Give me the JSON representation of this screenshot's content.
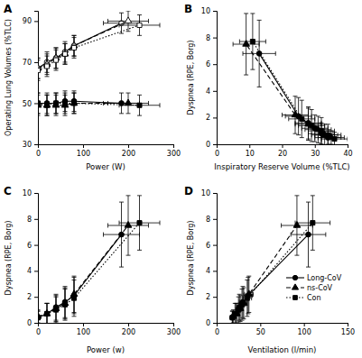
{
  "chart_data": [
    {
      "type": "line",
      "title": "A",
      "x_label": "Power (W)",
      "y_label": "Operating Lung Volumes (%TLC)",
      "xlim": [
        0,
        300
      ],
      "xticks": [
        0,
        100,
        200,
        300
      ],
      "ylim": [
        30,
        95
      ],
      "yticks": [
        30,
        50,
        70,
        90
      ],
      "series": [
        {
          "color": "#000000",
          "line_style": "solid",
          "marker": "circle-open",
          "x": [
            0,
            20,
            40,
            60,
            80,
            185
          ],
          "values": [
            67,
            70,
            72,
            75,
            78,
            89
          ],
          "errors": [
            5,
            5,
            5,
            5,
            5,
            5
          ],
          "x_errors": [
            null,
            null,
            null,
            null,
            null,
            40
          ]
        },
        {
          "color": "#000000",
          "line_style": "dashed",
          "marker": "triangle-open",
          "x": [
            0,
            20,
            40,
            60,
            80,
            200
          ],
          "values": [
            67,
            69,
            72,
            74,
            78,
            90
          ],
          "errors": [
            5,
            5,
            5,
            5,
            5,
            5
          ],
          "x_errors": [
            null,
            null,
            null,
            null,
            null,
            45
          ]
        },
        {
          "color": "#000000",
          "line_style": "dotted",
          "marker": "square-open",
          "x": [
            0,
            20,
            40,
            60,
            80,
            225
          ],
          "values": [
            66,
            68,
            71,
            74,
            77,
            88
          ],
          "errors": [
            5,
            5,
            5,
            5,
            5,
            5
          ],
          "x_errors": [
            null,
            null,
            null,
            null,
            null,
            45
          ]
        },
        {
          "color": "#000000",
          "line_style": "solid",
          "marker": "circle",
          "x": [
            0,
            20,
            40,
            60,
            80,
            185
          ],
          "values": [
            50,
            50,
            50,
            51,
            51,
            50
          ],
          "errors": [
            5,
            5,
            5,
            5,
            5,
            5
          ],
          "x_errors": [
            null,
            null,
            null,
            null,
            null,
            40
          ]
        },
        {
          "color": "#000000",
          "line_style": "dashed",
          "marker": "triangle",
          "x": [
            0,
            20,
            40,
            60,
            80,
            200
          ],
          "values": [
            49,
            49,
            49,
            49,
            50,
            50
          ],
          "errors": [
            5,
            5,
            5,
            5,
            5,
            5
          ],
          "x_errors": [
            null,
            null,
            null,
            null,
            null,
            45
          ]
        },
        {
          "color": "#000000",
          "line_style": "dotted",
          "marker": "square",
          "x": [
            0,
            20,
            40,
            60,
            80,
            225
          ],
          "values": [
            50,
            49,
            50,
            50,
            50,
            49
          ],
          "errors": [
            5,
            5,
            5,
            5,
            5,
            5
          ],
          "x_errors": [
            null,
            null,
            null,
            null,
            null,
            45
          ]
        }
      ]
    },
    {
      "type": "line",
      "title": "B",
      "x_label": "Inspiratory Reserve Volume (%TLC)",
      "y_label": "Dyspnea (RPE, Borg)",
      "xlim": [
        0,
        40
      ],
      "xticks": [
        0,
        10,
        20,
        30,
        40
      ],
      "ylim": [
        0,
        10
      ],
      "yticks": [
        0,
        2,
        4,
        6,
        8,
        10
      ],
      "series": [
        {
          "color": "#000000",
          "line_style": "solid",
          "marker": "circle",
          "x": [
            34,
            32,
            30,
            28,
            25,
            13
          ],
          "values": [
            0.5,
            0.8,
            1.2,
            1.6,
            2.1,
            6.8
          ],
          "errors": [
            0.5,
            0.8,
            1.0,
            1.2,
            1.4,
            2.5
          ],
          "x_errors": [
            4,
            4,
            4,
            4,
            4,
            5
          ]
        },
        {
          "color": "#000000",
          "line_style": "dashed",
          "marker": "triangle",
          "x": [
            35,
            33,
            31,
            28,
            24,
            9
          ],
          "values": [
            0.5,
            0.7,
            1.1,
            1.5,
            2.2,
            7.5
          ],
          "errors": [
            0.5,
            0.8,
            1.0,
            1.2,
            1.4,
            2.3
          ],
          "x_errors": [
            4,
            4,
            4,
            4,
            4,
            4
          ]
        },
        {
          "color": "#000000",
          "line_style": "dotted",
          "marker": "square",
          "x": [
            36,
            34,
            32,
            29,
            26,
            11
          ],
          "values": [
            0.4,
            0.7,
            1.0,
            1.4,
            1.9,
            7.7
          ],
          "errors": [
            0.5,
            0.8,
            1.0,
            1.2,
            1.4,
            2.1
          ],
          "x_errors": [
            4,
            4,
            4,
            4,
            4,
            4
          ]
        }
      ]
    },
    {
      "type": "line",
      "title": "C",
      "x_label": "Power (w)",
      "y_label": "Dyspnea (RPE, Borg)",
      "xlim": [
        0,
        300
      ],
      "xticks": [
        0,
        100,
        200,
        300
      ],
      "ylim": [
        0,
        10
      ],
      "yticks": [
        0,
        2,
        4,
        6,
        8,
        10
      ],
      "series": [
        {
          "color": "#000000",
          "line_style": "solid",
          "marker": "circle",
          "x": [
            0,
            20,
            40,
            60,
            80,
            185
          ],
          "values": [
            0.4,
            0.7,
            1.2,
            1.6,
            2.1,
            6.8
          ],
          "errors": [
            0.5,
            0.8,
            1.0,
            1.2,
            1.4,
            2.5
          ],
          "x_errors": [
            null,
            null,
            null,
            null,
            null,
            40
          ]
        },
        {
          "color": "#000000",
          "line_style": "dashed",
          "marker": "triangle",
          "x": [
            0,
            20,
            40,
            60,
            80,
            200
          ],
          "values": [
            0.5,
            0.7,
            1.1,
            1.5,
            2.2,
            7.5
          ],
          "errors": [
            0.5,
            0.8,
            1.0,
            1.2,
            1.4,
            2.3
          ],
          "x_errors": [
            null,
            null,
            null,
            null,
            null,
            45
          ]
        },
        {
          "color": "#000000",
          "line_style": "dotted",
          "marker": "square",
          "x": [
            0,
            20,
            40,
            60,
            80,
            225
          ],
          "values": [
            0.4,
            0.7,
            1.0,
            1.4,
            1.9,
            7.7
          ],
          "errors": [
            0.5,
            0.8,
            1.0,
            1.2,
            1.4,
            2.1
          ],
          "x_errors": [
            null,
            null,
            null,
            null,
            null,
            45
          ]
        }
      ]
    },
    {
      "type": "line",
      "title": "D",
      "x_label": "Ventilation (l/min)",
      "y_label": "Dyspnea (RPE, Borg)",
      "xlim": [
        0,
        150
      ],
      "xticks": [
        0,
        50,
        100,
        150
      ],
      "ylim": [
        0,
        10
      ],
      "yticks": [
        0,
        2,
        4,
        6,
        8,
        10
      ],
      "legend": "lower right",
      "series": [
        {
          "name": "Long-CoV",
          "color": "#000000",
          "line_style": "solid",
          "marker": "circle",
          "x": [
            18,
            22,
            26,
            30,
            36,
            105
          ],
          "values": [
            0.4,
            0.7,
            1.2,
            1.6,
            2.1,
            6.8
          ],
          "errors": [
            0.5,
            0.8,
            1.0,
            1.2,
            1.4,
            2.5
          ],
          "x_errors": [
            2,
            3,
            3,
            4,
            5,
            20
          ]
        },
        {
          "name": "ns-CoV",
          "color": "#000000",
          "line_style": "dashed",
          "marker": "triangle",
          "x": [
            19,
            23,
            27,
            31,
            37,
            92
          ],
          "values": [
            0.5,
            0.7,
            1.1,
            1.5,
            2.2,
            7.5
          ],
          "errors": [
            0.5,
            0.8,
            1.0,
            1.2,
            1.4,
            2.3
          ],
          "x_errors": [
            2,
            3,
            3,
            4,
            5,
            18
          ]
        },
        {
          "name": "Con",
          "color": "#000000",
          "line_style": "dotted",
          "marker": "square",
          "x": [
            18,
            21,
            25,
            29,
            35,
            110
          ],
          "values": [
            0.4,
            0.7,
            1.0,
            1.4,
            1.9,
            7.7
          ],
          "errors": [
            0.5,
            0.8,
            1.0,
            1.2,
            1.4,
            2.1
          ],
          "x_errors": [
            2,
            3,
            3,
            4,
            5,
            20
          ]
        }
      ]
    }
  ]
}
